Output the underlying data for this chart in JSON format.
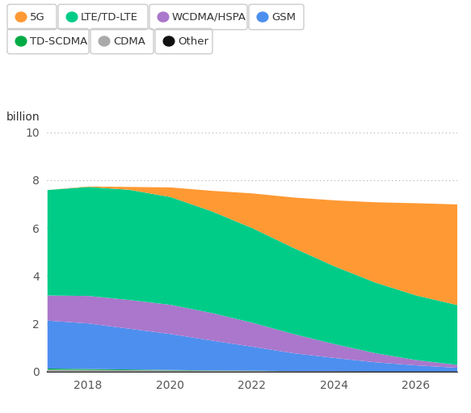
{
  "ylabel": "billion",
  "years": [
    2017,
    2018,
    2019,
    2020,
    2021,
    2022,
    2023,
    2024,
    2025,
    2026,
    2027
  ],
  "series": {
    "Other": [
      0.02,
      0.02,
      0.02,
      0.02,
      0.02,
      0.02,
      0.02,
      0.02,
      0.02,
      0.02,
      0.02
    ],
    "CDMA": [
      0.08,
      0.07,
      0.06,
      0.05,
      0.04,
      0.03,
      0.02,
      0.02,
      0.01,
      0.01,
      0.01
    ],
    "TD-SCDMA": [
      0.05,
      0.04,
      0.03,
      0.02,
      0.01,
      0.01,
      0.0,
      0.0,
      0.0,
      0.0,
      0.0
    ],
    "GSM": [
      2.0,
      1.9,
      1.7,
      1.5,
      1.25,
      1.0,
      0.75,
      0.55,
      0.38,
      0.25,
      0.15
    ],
    "WCDMA/HSPA": [
      1.05,
      1.15,
      1.2,
      1.22,
      1.15,
      1.0,
      0.8,
      0.58,
      0.38,
      0.22,
      0.12
    ],
    "LTE/TD-LTE": [
      4.4,
      4.55,
      4.6,
      4.5,
      4.25,
      3.95,
      3.6,
      3.25,
      2.95,
      2.7,
      2.5
    ],
    "5G": [
      0.0,
      0.02,
      0.12,
      0.4,
      0.85,
      1.45,
      2.1,
      2.75,
      3.35,
      3.85,
      4.2
    ]
  },
  "colors": {
    "Other": "#111111",
    "CDMA": "#aaaaaa",
    "TD-SCDMA": "#00aa44",
    "GSM": "#4d8fef",
    "WCDMA/HSPA": "#aa77cc",
    "LTE/TD-LTE": "#00cc88",
    "5G": "#ff9933"
  },
  "ylim": [
    0,
    10
  ],
  "yticks": [
    0,
    2,
    4,
    6,
    8,
    10
  ],
  "xticks": [
    2018,
    2020,
    2022,
    2024,
    2026
  ],
  "grid_color": "#aaaaaa",
  "background_color": "#ffffff",
  "legend_entries": [
    [
      "5G",
      "#ff9933"
    ],
    [
      "LTE/TD-LTE",
      "#00cc88"
    ],
    [
      "WCDMA/HSPA",
      "#aa77cc"
    ],
    [
      "GSM",
      "#4d8fef"
    ],
    [
      "TD-SCDMA",
      "#00aa44"
    ],
    [
      "CDMA",
      "#aaaaaa"
    ],
    [
      "Other",
      "#111111"
    ]
  ],
  "series_order": [
    "Other",
    "CDMA",
    "TD-SCDMA",
    "GSM",
    "WCDMA/HSPA",
    "LTE/TD-LTE",
    "5G"
  ]
}
